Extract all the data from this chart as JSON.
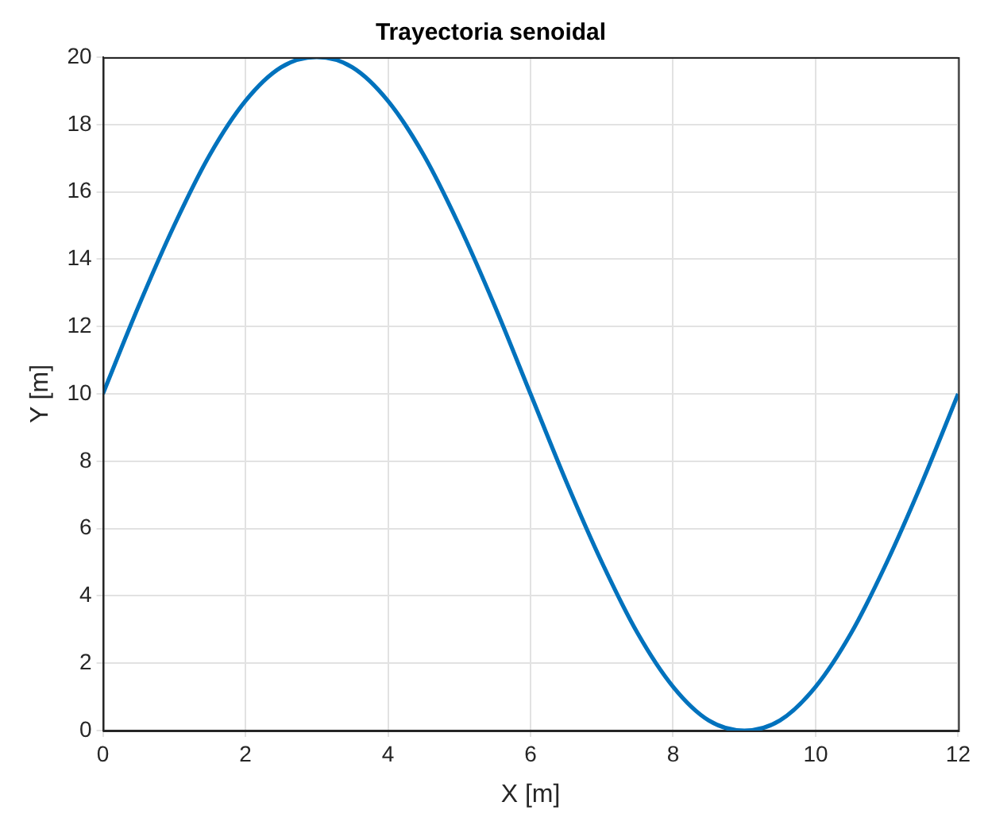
{
  "chart_data": {
    "type": "line",
    "title": "Trayectoria senoidal",
    "xlabel": "X [m]",
    "ylabel": "Y [m]",
    "x": [
      0,
      0.5,
      1,
      1.5,
      2,
      2.5,
      3,
      3.5,
      4,
      4.5,
      5,
      5.5,
      6,
      6.5,
      7,
      7.5,
      8,
      8.5,
      9,
      9.5,
      10,
      10.5,
      11,
      11.5,
      12
    ],
    "series": [
      {
        "color": "#0072bd",
        "values": [
          10,
          12.6,
          15,
          17.1,
          18.7,
          19.7,
          20,
          19.7,
          18.7,
          17.1,
          15,
          12.6,
          10,
          7.4,
          5,
          2.9,
          1.3,
          0.3,
          0,
          0.3,
          1.3,
          2.9,
          5,
          7.4,
          10
        ]
      }
    ],
    "xlim": [
      0,
      12
    ],
    "xticks": [
      0,
      2,
      4,
      6,
      8,
      10,
      12
    ],
    "ylim": [
      0,
      20
    ],
    "yticks": [
      0,
      2,
      4,
      6,
      8,
      10,
      12,
      14,
      16,
      18,
      20
    ],
    "grid": true,
    "legend": false,
    "marker": "none",
    "line_style": "solid"
  }
}
